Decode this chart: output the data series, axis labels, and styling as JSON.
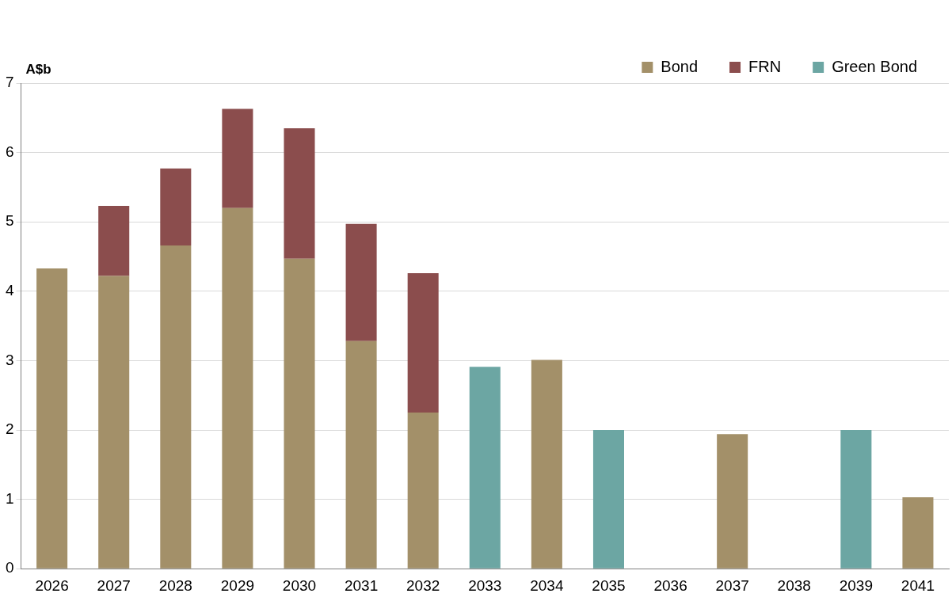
{
  "chart_data": {
    "type": "bar",
    "ylabel": "A$b",
    "stacked": true,
    "categories": [
      "2026",
      "2027",
      "2028",
      "2029",
      "2030",
      "2031",
      "2032",
      "2033",
      "2034",
      "2035",
      "2036",
      "2037",
      "2038",
      "2039",
      "2041"
    ],
    "series": [
      {
        "name": "Bond",
        "color": "#a39069",
        "values": [
          4.33,
          4.22,
          4.66,
          5.2,
          4.47,
          3.28,
          2.25,
          null,
          3.01,
          null,
          null,
          1.94,
          null,
          null,
          1.03
        ]
      },
      {
        "name": "FRN",
        "color": "#8b4d4d",
        "values": [
          null,
          1.01,
          1.11,
          1.43,
          1.88,
          1.69,
          2.01,
          null,
          null,
          null,
          null,
          null,
          null,
          null,
          null
        ]
      },
      {
        "name": "Green Bond",
        "color": "#6ca6a3",
        "values": [
          null,
          null,
          null,
          null,
          null,
          null,
          null,
          2.91,
          null,
          2,
          null,
          null,
          null,
          2,
          null
        ]
      }
    ],
    "ylim": [
      0,
      7
    ],
    "yticks": [
      0,
      1,
      2,
      3,
      4,
      5,
      6,
      7
    ],
    "grid": "y",
    "legend": "top"
  }
}
